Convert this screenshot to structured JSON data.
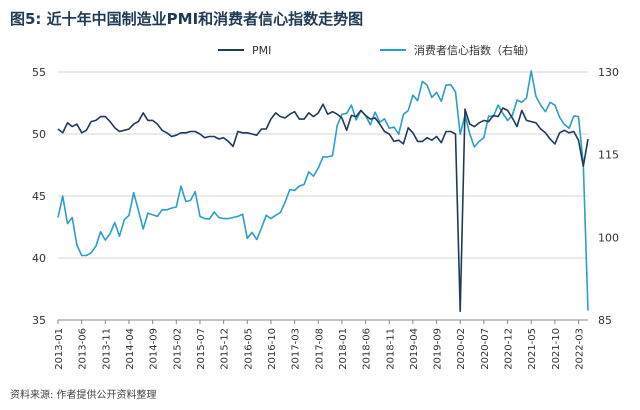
{
  "title": "图5: 近十年中国制造业PMI和消费者信心指数走势图",
  "source": "资料来源: 作者提供公开资料整理",
  "chart_data": {
    "type": "line",
    "title": "图5: 近十年中国制造业PMI和消费者信心指数走势图",
    "xlabel": "",
    "ylabel": "",
    "y_left_lim": [
      35,
      55
    ],
    "y_left_ticks": [
      35,
      40,
      45,
      50,
      55
    ],
    "y_right_lim": [
      85,
      130
    ],
    "y_right_ticks": [
      85,
      100,
      115,
      130
    ],
    "x_start": "2013-01",
    "x_end": "2022-05",
    "x_tick_labels": [
      "2013-01",
      "2013-06",
      "2013-11",
      "2014-04",
      "2014-09",
      "2015-02",
      "2015-07",
      "2015-12",
      "2016-05",
      "2016-10",
      "2017-03",
      "2017-08",
      "2018-01",
      "2018-06",
      "2018-11",
      "2019-04",
      "2019-09",
      "2020-02",
      "2020-07",
      "2020-12",
      "2021-05",
      "2021-10",
      "2022-03"
    ],
    "grid": "horizontal",
    "legend_position": "top-center",
    "series": [
      {
        "name": "PMI",
        "axis": "left",
        "color": "#1f3a5c",
        "values": [
          50.4,
          50.1,
          50.9,
          50.6,
          50.8,
          50.1,
          50.3,
          51.0,
          51.1,
          51.4,
          51.4,
          51.0,
          50.5,
          50.2,
          50.3,
          50.4,
          50.8,
          51.0,
          51.7,
          51.1,
          51.1,
          50.8,
          50.3,
          50.1,
          49.8,
          49.9,
          50.1,
          50.1,
          50.2,
          50.2,
          50.0,
          49.7,
          49.8,
          49.8,
          49.6,
          49.7,
          49.4,
          49.0,
          50.2,
          50.1,
          50.1,
          50.0,
          49.9,
          50.4,
          50.4,
          51.2,
          51.7,
          51.4,
          51.3,
          51.6,
          51.8,
          51.2,
          51.2,
          51.7,
          51.4,
          51.7,
          52.4,
          51.6,
          51.8,
          51.6,
          51.3,
          50.3,
          51.5,
          51.4,
          51.9,
          51.5,
          51.2,
          51.3,
          50.8,
          50.2,
          50.0,
          49.4,
          49.5,
          49.2,
          50.5,
          50.1,
          49.4,
          49.4,
          49.7,
          49.5,
          49.8,
          49.3,
          50.2,
          50.2,
          50.0,
          35.7,
          52.0,
          50.8,
          50.6,
          50.9,
          51.1,
          51.0,
          51.5,
          51.4,
          52.1,
          51.9,
          51.3,
          50.6,
          51.9,
          51.1,
          51.0,
          50.9,
          50.4,
          50.1,
          49.6,
          49.2,
          50.1,
          50.3,
          50.1,
          50.2,
          49.5,
          47.4,
          49.6
        ],
        "first_month": "2013-01"
      },
      {
        "name": "消费者信心指数（右轴）",
        "axis": "right",
        "color": "#2a9fc7",
        "values": [
          103.6,
          107.5,
          102.5,
          103.6,
          98.6,
          96.7,
          96.7,
          97.2,
          98.4,
          101.0,
          99.5,
          100.7,
          102.7,
          100.2,
          103.2,
          104.0,
          108.1,
          104.9,
          101.5,
          104.4,
          104.1,
          103.8,
          105.0,
          105.0,
          105.3,
          105.5,
          109.3,
          106.5,
          106.7,
          108.3,
          103.8,
          103.4,
          103.3,
          104.6,
          103.6,
          103.4,
          103.4,
          103.6,
          103.8,
          104.2,
          99.8,
          100.9,
          99.6,
          101.7,
          104.0,
          103.4,
          104.0,
          104.5,
          106.4,
          108.7,
          108.5,
          109.3,
          109.6,
          111.9,
          111.1,
          112.6,
          114.6,
          114.6,
          114.8,
          120.3,
          122.3,
          122.5,
          124.0,
          121.3,
          123.0,
          122.1,
          120.4,
          122.7,
          120.9,
          121.5,
          119.8,
          120.0,
          118.7,
          122.3,
          123.0,
          125.8,
          124.8,
          128.3,
          127.6,
          125.4,
          126.3,
          124.7,
          127.6,
          127.7,
          126.4,
          118.7,
          122.2,
          118.8,
          116.4,
          117.4,
          118.1,
          122.0,
          121.9,
          124.0,
          122.5,
          121.2,
          122.1,
          124.9,
          124.5,
          125.3,
          130.2,
          125.6,
          124.0,
          122.8,
          124.5,
          124.0,
          121.8,
          120.5,
          119.8,
          122.0,
          121.9,
          113.2,
          86.7
        ],
        "first_month": "2013-01"
      }
    ]
  }
}
